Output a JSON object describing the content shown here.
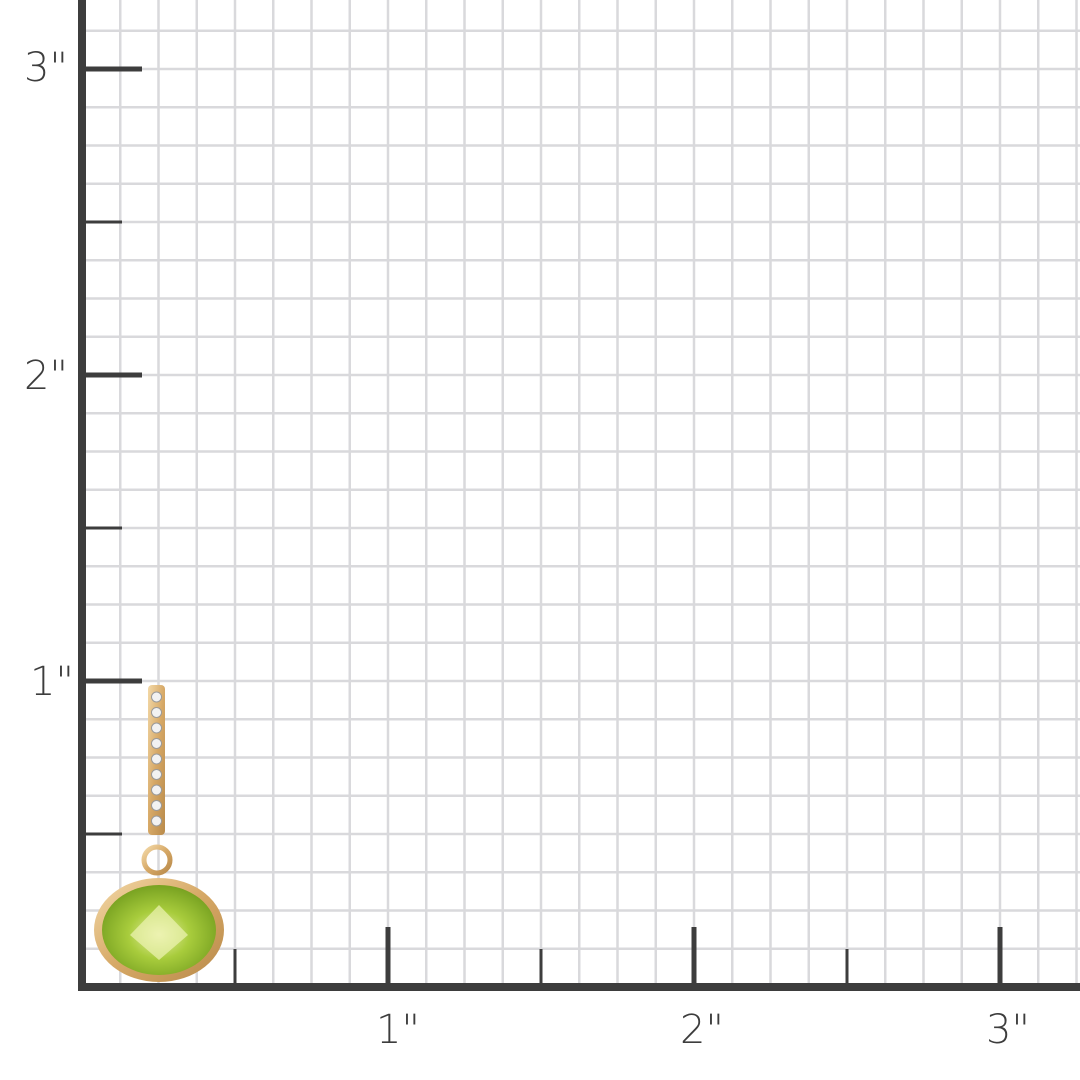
{
  "ruler": {
    "unit": "inch",
    "y_labels": [
      "3\"",
      "2\"",
      "1\""
    ],
    "x_labels": [
      "1\"",
      "2\"",
      "3\""
    ],
    "axis_color": "#3d3d3d",
    "grid_color": "#d9d9dc",
    "minor_division": "1/8 inch"
  },
  "product": {
    "type": "earring",
    "stone_color": "#9cc43a",
    "metal_color": "#d9b27a"
  }
}
